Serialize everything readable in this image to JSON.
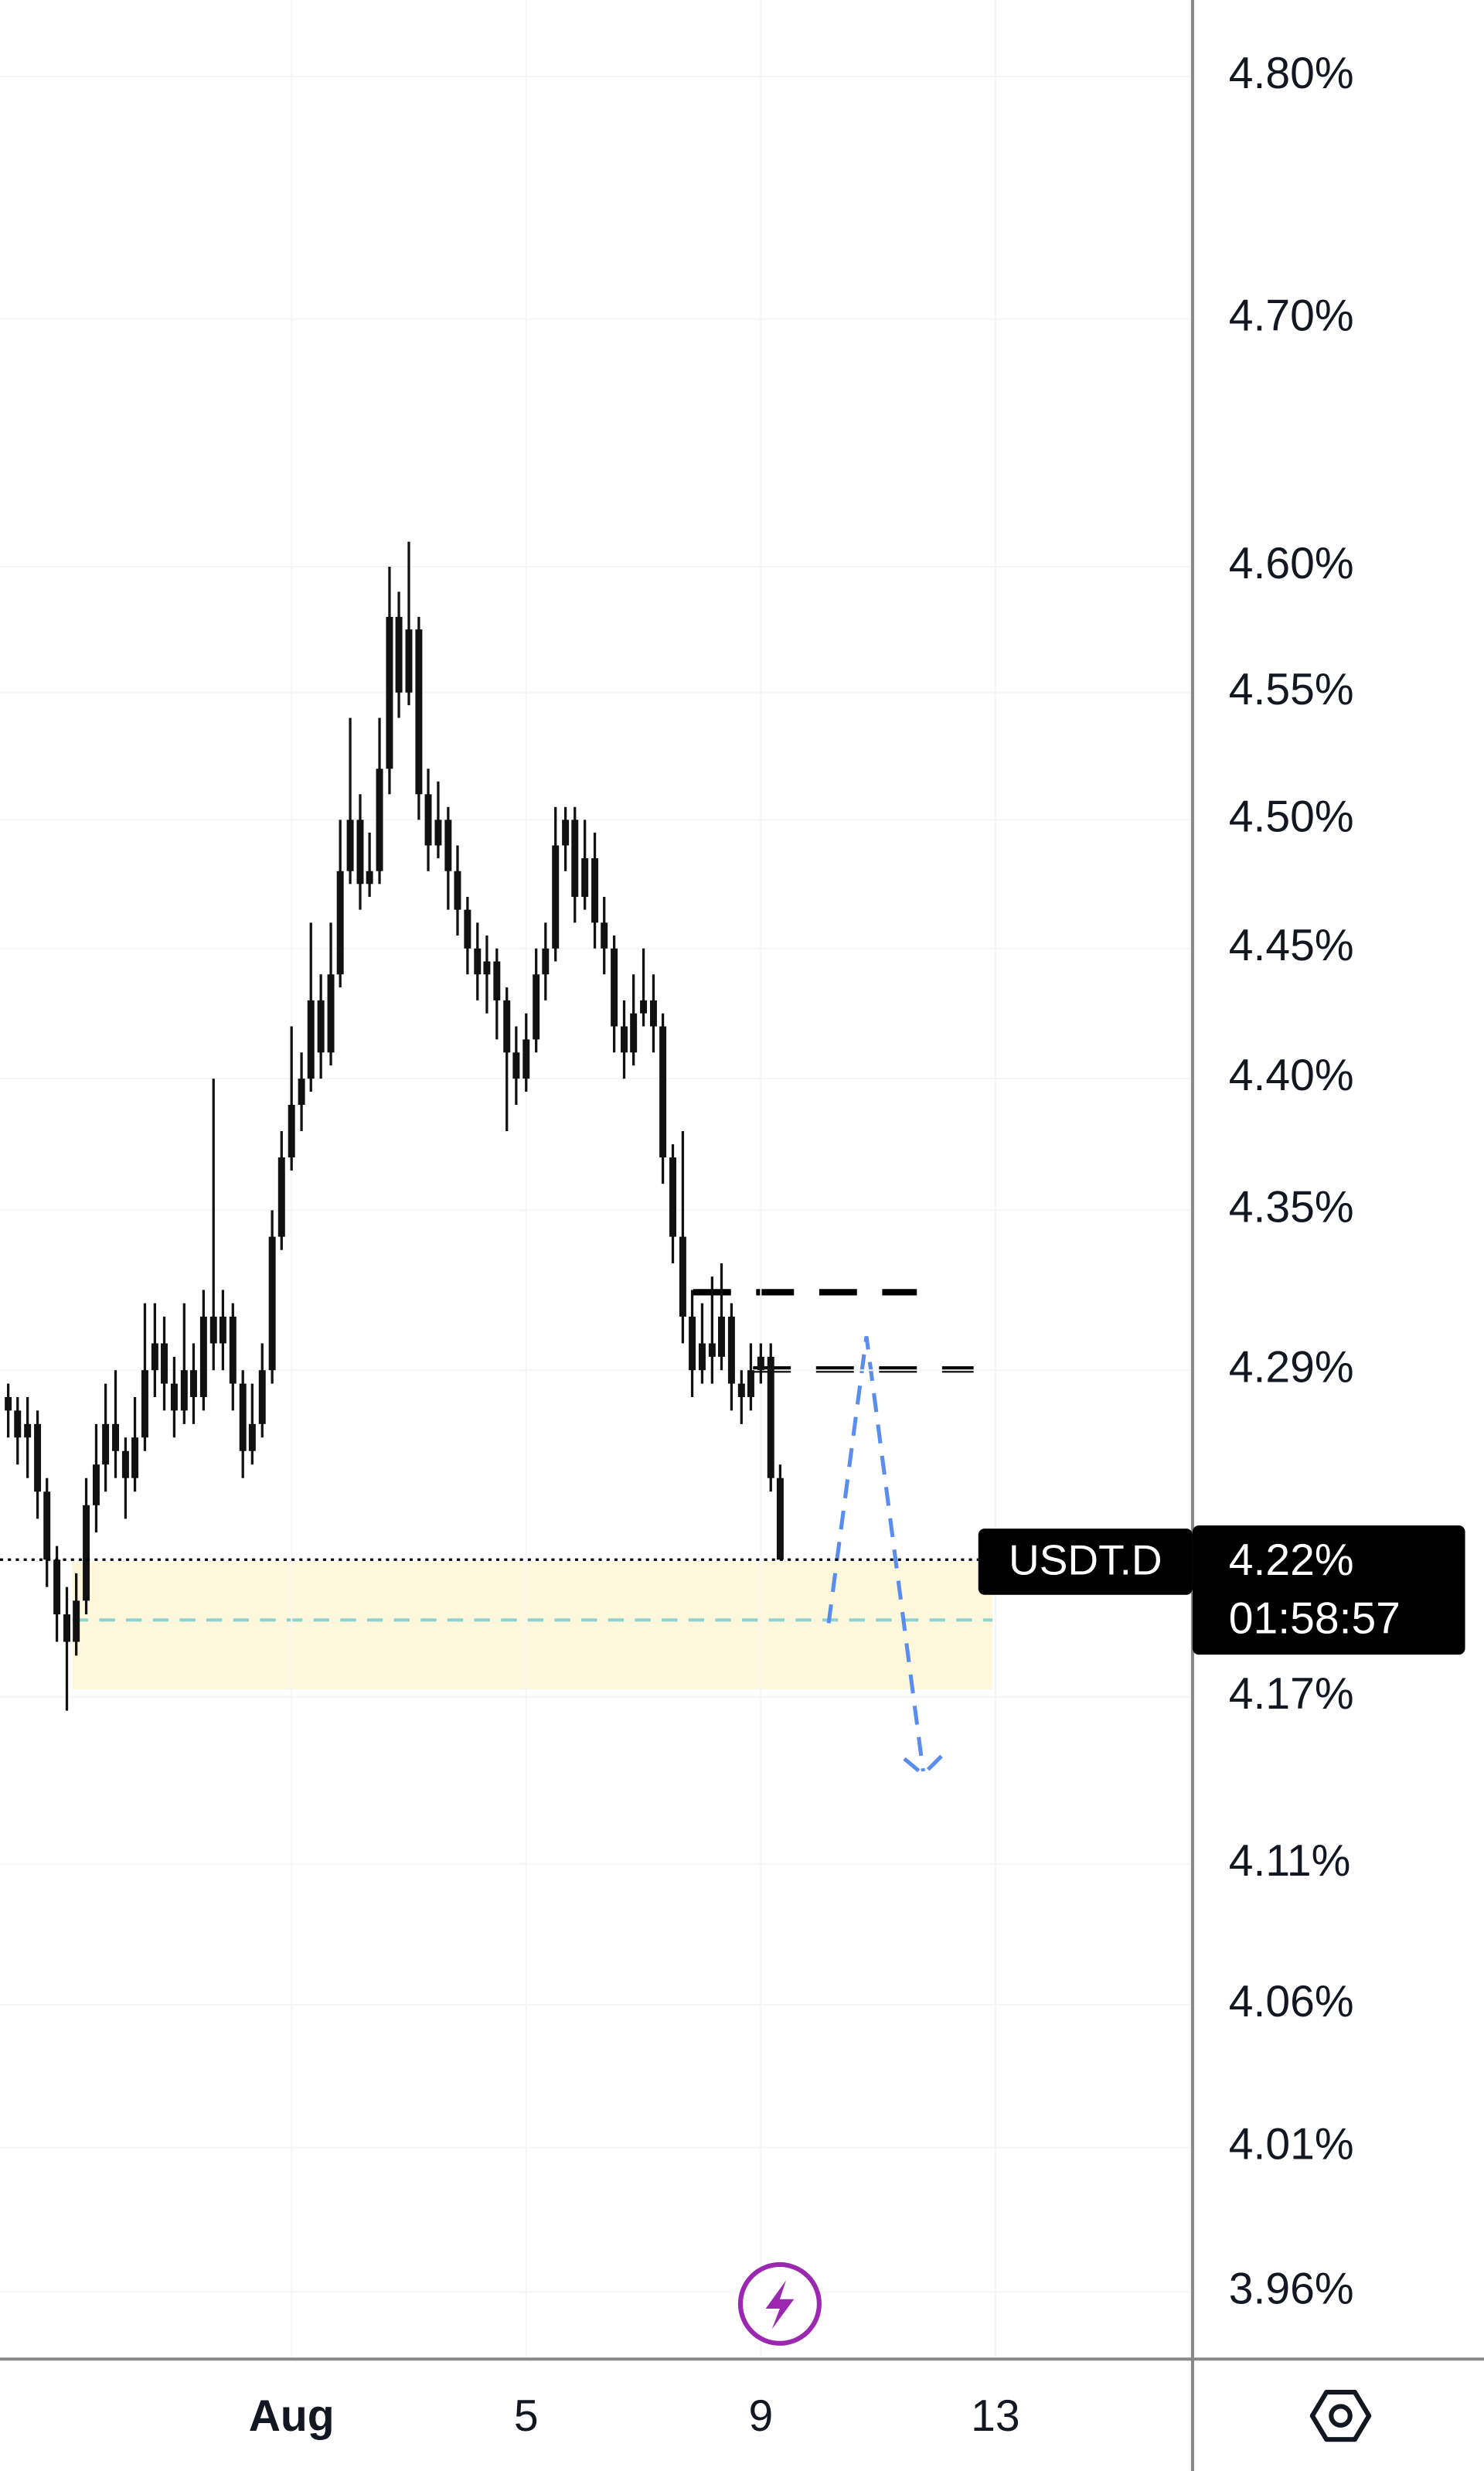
{
  "chart_data": {
    "type": "candlestick",
    "symbol": "USDT.D",
    "color": "#111111",
    "x": [
      -3.83,
      -3.67,
      -3.5,
      -3.33,
      -3.17,
      -3,
      -2.83,
      -2.67,
      -2.5,
      -2.33,
      -2.17,
      -2,
      -1.83,
      -1.67,
      -1.5,
      -1.33,
      -1.17,
      -1,
      -0.83,
      -0.67,
      -0.5,
      -0.33,
      -0.17,
      0,
      0.17,
      0.33,
      0.5,
      0.67,
      0.83,
      1,
      1.17,
      1.33,
      1.5,
      1.67,
      1.83,
      2,
      2.17,
      2.33,
      2.5,
      2.67,
      2.83,
      3,
      3.17,
      3.33,
      3.5,
      3.67,
      3.83,
      4,
      4.17,
      4.33,
      4.5,
      4.67,
      4.83,
      5,
      5.17,
      5.33,
      5.5,
      5.67,
      5.83,
      6,
      6.17,
      6.33,
      6.5,
      6.67,
      6.83,
      7,
      7.17,
      7.33,
      7.5,
      7.67,
      7.83,
      8,
      8.17,
      8.33,
      8.5,
      8.67,
      8.83,
      9,
      9.17,
      9.33
    ],
    "open": [
      4.28,
      4.275,
      4.265,
      4.27,
      4.245,
      4.22,
      4.2,
      4.19,
      4.205,
      4.24,
      4.255,
      4.27,
      4.26,
      4.25,
      4.265,
      4.29,
      4.3,
      4.285,
      4.275,
      4.29,
      4.28,
      4.31,
      4.3,
      4.31,
      4.285,
      4.26,
      4.27,
      4.29,
      4.34,
      4.37,
      4.39,
      4.4,
      4.43,
      4.41,
      4.44,
      4.48,
      4.5,
      4.475,
      4.48,
      4.52,
      4.58,
      4.55,
      4.575,
      4.51,
      4.49,
      4.5,
      4.48,
      4.465,
      4.45,
      4.44,
      4.445,
      4.43,
      4.41,
      4.4,
      4.415,
      4.44,
      4.45,
      4.49,
      4.5,
      4.47,
      4.485,
      4.46,
      4.45,
      4.42,
      4.41,
      4.425,
      4.43,
      4.42,
      4.37,
      4.34,
      4.31,
      4.29,
      4.3,
      4.295,
      4.31,
      4.285,
      4.28,
      4.29,
      4.295,
      4.25
    ],
    "high": [
      4.285,
      4.28,
      4.28,
      4.275,
      4.25,
      4.225,
      4.21,
      4.215,
      4.25,
      4.27,
      4.285,
      4.29,
      4.265,
      4.28,
      4.315,
      4.315,
      4.31,
      4.295,
      4.315,
      4.3,
      4.32,
      4.4,
      4.32,
      4.315,
      4.29,
      4.285,
      4.3,
      4.35,
      4.38,
      4.42,
      4.41,
      4.46,
      4.44,
      4.46,
      4.5,
      4.54,
      4.51,
      4.495,
      4.54,
      4.6,
      4.59,
      4.61,
      4.58,
      4.52,
      4.515,
      4.505,
      4.49,
      4.47,
      4.46,
      4.455,
      4.45,
      4.435,
      4.42,
      4.425,
      4.45,
      4.46,
      4.505,
      4.505,
      4.505,
      4.5,
      4.495,
      4.47,
      4.455,
      4.43,
      4.44,
      4.45,
      4.44,
      4.425,
      4.375,
      4.38,
      4.32,
      4.315,
      4.325,
      4.33,
      4.315,
      4.29,
      4.3,
      4.3,
      4.3,
      4.255
    ],
    "low": [
      4.265,
      4.255,
      4.25,
      4.235,
      4.21,
      4.19,
      4.165,
      4.185,
      4.2,
      4.23,
      4.245,
      4.25,
      4.235,
      4.245,
      4.26,
      4.28,
      4.275,
      4.265,
      4.27,
      4.27,
      4.275,
      4.29,
      4.29,
      4.275,
      4.25,
      4.255,
      4.265,
      4.285,
      4.335,
      4.365,
      4.38,
      4.395,
      4.4,
      4.405,
      4.435,
      4.475,
      4.465,
      4.47,
      4.475,
      4.51,
      4.54,
      4.545,
      4.5,
      4.48,
      4.485,
      4.465,
      4.455,
      4.44,
      4.43,
      4.425,
      4.415,
      4.38,
      4.39,
      4.395,
      4.41,
      4.43,
      4.445,
      4.48,
      4.46,
      4.465,
      4.45,
      4.44,
      4.41,
      4.4,
      4.405,
      4.42,
      4.41,
      4.36,
      4.33,
      4.3,
      4.28,
      4.285,
      4.285,
      4.29,
      4.275,
      4.27,
      4.275,
      4.285,
      4.245,
      4.22
    ],
    "close": [
      4.275,
      4.265,
      4.27,
      4.245,
      4.22,
      4.2,
      4.19,
      4.205,
      4.24,
      4.255,
      4.27,
      4.26,
      4.25,
      4.265,
      4.29,
      4.3,
      4.285,
      4.275,
      4.29,
      4.28,
      4.31,
      4.3,
      4.31,
      4.285,
      4.26,
      4.27,
      4.29,
      4.34,
      4.37,
      4.39,
      4.4,
      4.43,
      4.41,
      4.44,
      4.48,
      4.5,
      4.475,
      4.48,
      4.52,
      4.58,
      4.55,
      4.575,
      4.51,
      4.49,
      4.5,
      4.48,
      4.465,
      4.45,
      4.44,
      4.445,
      4.43,
      4.41,
      4.4,
      4.415,
      4.44,
      4.45,
      4.49,
      4.5,
      4.47,
      4.485,
      4.46,
      4.45,
      4.42,
      4.41,
      4.425,
      4.43,
      4.42,
      4.37,
      4.34,
      4.31,
      4.29,
      4.3,
      4.295,
      4.31,
      4.285,
      4.28,
      4.29,
      4.295,
      4.25,
      4.22
    ],
    "xlim": [
      -3.97,
      16.36
    ],
    "xticks": [
      {
        "value": 1,
        "label": "Aug"
      },
      5,
      9,
      13
    ],
    "ylim": [
      3.937,
      4.832
    ],
    "log_scale": true,
    "yticks": [
      {
        "value": 4.8,
        "label": "4.80%"
      },
      {
        "value": 4.7,
        "label": "4.70%"
      },
      {
        "value": 4.6,
        "label": "4.60%"
      },
      {
        "value": 4.55,
        "label": "4.55%"
      },
      {
        "value": 4.5,
        "label": "4.50%"
      },
      {
        "value": 4.45,
        "label": "4.45%"
      },
      {
        "value": 4.4,
        "label": "4.40%"
      },
      {
        "value": 4.35,
        "label": "4.35%"
      },
      {
        "value": 4.29,
        "label": "4.29%"
      },
      {
        "value": 4.17,
        "label": "4.17%"
      },
      {
        "value": 4.11,
        "label": "4.11%"
      },
      {
        "value": 4.06,
        "label": "4.06%"
      },
      {
        "value": 4.01,
        "label": "4.01%"
      },
      {
        "value": 3.96,
        "label": "3.96%"
      }
    ],
    "last_price": {
      "value": 4.22,
      "label": "4.22%"
    },
    "countdown": "01:58:57"
  }
}
